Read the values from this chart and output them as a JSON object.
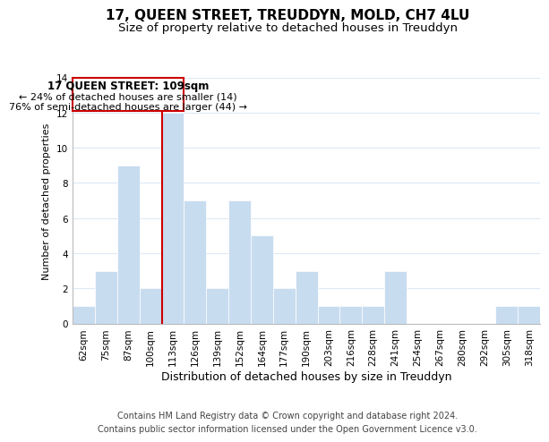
{
  "title": "17, QUEEN STREET, TREUDDYN, MOLD, CH7 4LU",
  "subtitle": "Size of property relative to detached houses in Treuddyn",
  "xlabel": "Distribution of detached houses by size in Treuddyn",
  "ylabel": "Number of detached properties",
  "footer_line1": "Contains HM Land Registry data © Crown copyright and database right 2024.",
  "footer_line2": "Contains public sector information licensed under the Open Government Licence v3.0.",
  "bin_labels": [
    "62sqm",
    "75sqm",
    "87sqm",
    "100sqm",
    "113sqm",
    "126sqm",
    "139sqm",
    "152sqm",
    "164sqm",
    "177sqm",
    "190sqm",
    "203sqm",
    "216sqm",
    "228sqm",
    "241sqm",
    "254sqm",
    "267sqm",
    "280sqm",
    "292sqm",
    "305sqm",
    "318sqm"
  ],
  "bar_values": [
    1,
    3,
    9,
    2,
    12,
    7,
    2,
    7,
    5,
    2,
    3,
    1,
    1,
    1,
    3,
    0,
    0,
    0,
    0,
    1,
    1
  ],
  "bar_color": "#c8dcf0",
  "highlight_line_color": "#cc0000",
  "highlight_bin_index": 4,
  "annotation_title": "17 QUEEN STREET: 109sqm",
  "annotation_line1": "← 24% of detached houses are smaller (14)",
  "annotation_line2": "76% of semi-detached houses are larger (44) →",
  "annotation_box_edge_color": "#cc0000",
  "annotation_box_face_color": "#ffffff",
  "ylim": [
    0,
    14
  ],
  "yticks": [
    0,
    2,
    4,
    6,
    8,
    10,
    12,
    14
  ],
  "grid_color": "#dce9f5",
  "background_color": "#ffffff",
  "title_fontsize": 11,
  "subtitle_fontsize": 9.5,
  "xlabel_fontsize": 9,
  "ylabel_fontsize": 8,
  "tick_fontsize": 7.5,
  "annotation_title_fontsize": 8.5,
  "annotation_text_fontsize": 8,
  "footer_fontsize": 7
}
